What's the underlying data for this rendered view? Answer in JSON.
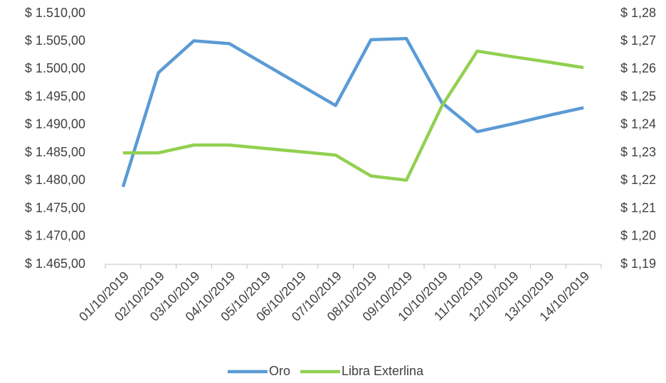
{
  "chart_data": {
    "type": "line",
    "categories": [
      "01/10/2019",
      "02/10/2019",
      "03/10/2019",
      "04/10/2019",
      "05/10/2019",
      "06/10/2019",
      "07/10/2019",
      "08/10/2019",
      "09/10/2019",
      "10/10/2019",
      "11/10/2019",
      "12/10/2019",
      "13/10/2019",
      "14/10/2019"
    ],
    "series": [
      {
        "name": "Oro",
        "color": "#5b9bd5",
        "values": [
          1478.9,
          1499.4,
          1505.1,
          1504.6,
          1500.9,
          1497.2,
          1493.5,
          1505.3,
          1505.5,
          1494.0,
          1488.8,
          1490.2,
          1491.7,
          1493.1
        ]
      },
      {
        "name": "Libra Exterlina",
        "color": "#92d050",
        "axis": "y2",
        "values": [
          1.23,
          1.23,
          1.2328,
          1.2328,
          1.2316,
          1.2304,
          1.2292,
          1.2217,
          1.2202,
          1.2468,
          1.2665,
          1.2645,
          1.2626,
          1.2606
        ]
      }
    ],
    "ylim": [
      1465,
      1510
    ],
    "yticks": [
      {
        "value": 1465,
        "label": "$ 1.465,00"
      },
      {
        "value": 1470,
        "label": "$ 1.470,00"
      },
      {
        "value": 1475,
        "label": "$ 1.475,00"
      },
      {
        "value": 1480,
        "label": "$ 1.480,00"
      },
      {
        "value": 1485,
        "label": "$ 1.485,00"
      },
      {
        "value": 1490,
        "label": "$ 1.490,00"
      },
      {
        "value": 1495,
        "label": "$ 1.495,00"
      },
      {
        "value": 1500,
        "label": "$ 1.500,00"
      },
      {
        "value": 1505,
        "label": "$ 1.505,00"
      },
      {
        "value": 1510,
        "label": "$ 1.510,00"
      }
    ],
    "y2lim": [
      1.19,
      1.28
    ],
    "y2ticks": [
      {
        "value": 1.19,
        "label": "$ 1,19"
      },
      {
        "value": 1.2,
        "label": "$ 1,20"
      },
      {
        "value": 1.21,
        "label": "$ 1,21"
      },
      {
        "value": 1.22,
        "label": "$ 1,22"
      },
      {
        "value": 1.23,
        "label": "$ 1,23"
      },
      {
        "value": 1.24,
        "label": "$ 1,24"
      },
      {
        "value": 1.25,
        "label": "$ 1,25"
      },
      {
        "value": 1.26,
        "label": "$ 1,26"
      },
      {
        "value": 1.27,
        "label": "$ 1,27"
      },
      {
        "value": 1.28,
        "label": "$ 1,28"
      }
    ],
    "legend": "bottom",
    "grid": false
  }
}
